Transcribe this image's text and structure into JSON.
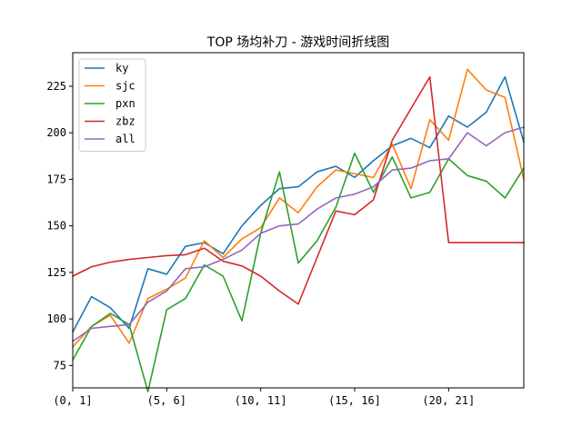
{
  "chart_data": {
    "type": "line",
    "title": "TOP 场均补刀 - 游戏时间折线图",
    "xlabel": "",
    "ylabel": "",
    "x_tick_labels": [
      "(0, 1]",
      "(5, 6]",
      "(10, 11]",
      "(15, 16]",
      "(20, 21]"
    ],
    "x_tick_positions": [
      0,
      5,
      10,
      15,
      20
    ],
    "xlim": [
      0,
      24
    ],
    "ylim": [
      63,
      243
    ],
    "y_ticks": [
      75,
      100,
      125,
      150,
      175,
      200,
      225
    ],
    "legend_position": "upper-left",
    "grid": false,
    "series": [
      {
        "name": "ky",
        "color": "#1f77b4",
        "x": [
          0,
          1,
          2,
          3,
          4,
          5,
          6,
          7,
          8,
          9,
          10,
          11,
          12,
          13,
          14,
          15,
          16,
          17,
          18,
          19,
          20,
          21,
          22,
          23,
          24
        ],
        "values": [
          93,
          112,
          106,
          95,
          127,
          124,
          139,
          141,
          135,
          150,
          161,
          170,
          171,
          179,
          182,
          176,
          185,
          193,
          197,
          192,
          209,
          203,
          211,
          230,
          195
        ]
      },
      {
        "name": "sjc",
        "color": "#ff7f0e",
        "x": [
          0,
          1,
          2,
          3,
          4,
          5,
          6,
          7,
          8,
          9,
          10,
          11,
          12,
          13,
          14,
          15,
          16,
          17,
          18,
          19,
          20,
          21,
          22,
          23,
          24
        ],
        "values": [
          85,
          96,
          102,
          87,
          111,
          116,
          122,
          142,
          133,
          143,
          149,
          165,
          157,
          171,
          180,
          178,
          176,
          194,
          170,
          207,
          196,
          234,
          223,
          219,
          175
        ]
      },
      {
        "name": "pxn",
        "color": "#2ca02c",
        "x": [
          0,
          1,
          2,
          3,
          4,
          5,
          6,
          7,
          8,
          9,
          10,
          11,
          12,
          13,
          14,
          15,
          16,
          17,
          18,
          19,
          20,
          21,
          22,
          23,
          24
        ],
        "values": [
          78,
          96,
          103,
          97,
          61,
          105,
          111,
          129,
          123,
          99,
          146,
          179,
          130,
          142,
          160,
          189,
          168,
          187,
          165,
          168,
          186,
          177,
          174,
          165,
          181
        ]
      },
      {
        "name": "zbz",
        "color": "#d62728",
        "x": [
          0,
          1,
          2,
          3,
          4,
          5,
          6,
          7,
          8,
          9,
          10,
          11,
          12,
          13,
          14,
          15,
          16,
          17,
          18,
          19,
          20,
          21,
          22,
          23,
          24
        ],
        "values": [
          123,
          128,
          130.5,
          132,
          133,
          134,
          134.5,
          138,
          131,
          128.5,
          123,
          115,
          108,
          133,
          158,
          156,
          164,
          196,
          213,
          230,
          141,
          141,
          141,
          141,
          141
        ]
      },
      {
        "name": "all",
        "color": "#9467bd",
        "x": [
          0,
          1,
          2,
          3,
          4,
          5,
          6,
          7,
          8,
          9,
          10,
          11,
          12,
          13,
          14,
          15,
          16,
          17,
          18,
          19,
          20,
          21,
          22,
          23,
          24
        ],
        "values": [
          88,
          95,
          96,
          97,
          109,
          115,
          127,
          128,
          132,
          137,
          146,
          150,
          151,
          159,
          165,
          167,
          171,
          180,
          181,
          185,
          186,
          200,
          193,
          200,
          203
        ]
      }
    ]
  }
}
